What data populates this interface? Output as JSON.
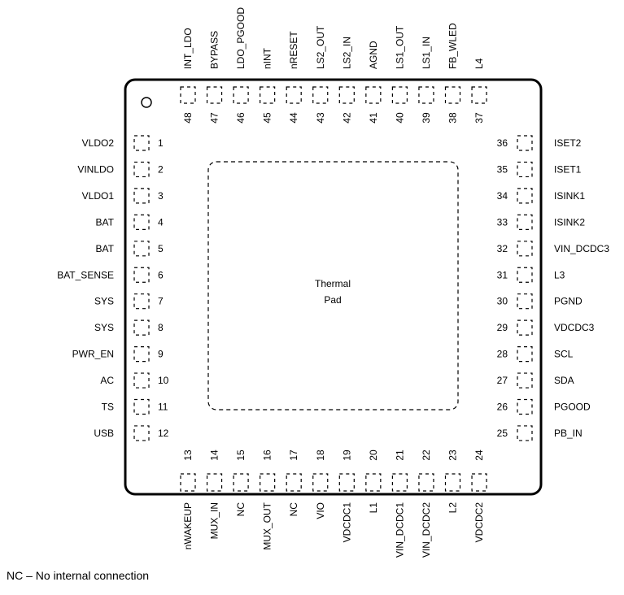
{
  "package": {
    "thermal_pad_lines": [
      "Thermal",
      "Pad"
    ]
  },
  "pins": {
    "left": [
      {
        "num": "1",
        "name": "VLDO2"
      },
      {
        "num": "2",
        "name": "VINLDO"
      },
      {
        "num": "3",
        "name": "VLDO1"
      },
      {
        "num": "4",
        "name": "BAT"
      },
      {
        "num": "5",
        "name": "BAT"
      },
      {
        "num": "6",
        "name": "BAT_SENSE"
      },
      {
        "num": "7",
        "name": "SYS"
      },
      {
        "num": "8",
        "name": "SYS"
      },
      {
        "num": "9",
        "name": "PWR_EN"
      },
      {
        "num": "10",
        "name": "AC"
      },
      {
        "num": "11",
        "name": "TS"
      },
      {
        "num": "12",
        "name": "USB"
      }
    ],
    "bottom": [
      {
        "num": "13",
        "name": "nWAKEUP"
      },
      {
        "num": "14",
        "name": "MUX_IN"
      },
      {
        "num": "15",
        "name": "NC"
      },
      {
        "num": "16",
        "name": "MUX_OUT"
      },
      {
        "num": "17",
        "name": "NC"
      },
      {
        "num": "18",
        "name": "VIO"
      },
      {
        "num": "19",
        "name": "VDCDC1"
      },
      {
        "num": "20",
        "name": "L1"
      },
      {
        "num": "21",
        "name": "VIN_DCDC1"
      },
      {
        "num": "22",
        "name": "VIN_DCDC2"
      },
      {
        "num": "23",
        "name": "L2"
      },
      {
        "num": "24",
        "name": "VDCDC2"
      }
    ],
    "right": [
      {
        "num": "25",
        "name": "PB_IN"
      },
      {
        "num": "26",
        "name": "PGOOD"
      },
      {
        "num": "27",
        "name": "SDA"
      },
      {
        "num": "28",
        "name": "SCL"
      },
      {
        "num": "29",
        "name": "VDCDC3"
      },
      {
        "num": "30",
        "name": "PGND"
      },
      {
        "num": "31",
        "name": "L3"
      },
      {
        "num": "32",
        "name": "VIN_DCDC3"
      },
      {
        "num": "33",
        "name": "ISINK2"
      },
      {
        "num": "34",
        "name": "ISINK1"
      },
      {
        "num": "35",
        "name": "ISET1"
      },
      {
        "num": "36",
        "name": "ISET2"
      }
    ],
    "top": [
      {
        "num": "37",
        "name": "L4"
      },
      {
        "num": "38",
        "name": "FB_WLED"
      },
      {
        "num": "39",
        "name": "LS1_IN"
      },
      {
        "num": "40",
        "name": "LS1_OUT"
      },
      {
        "num": "41",
        "name": "AGND"
      },
      {
        "num": "42",
        "name": "LS2_IN"
      },
      {
        "num": "43",
        "name": "LS2_OUT"
      },
      {
        "num": "44",
        "name": "nRESET"
      },
      {
        "num": "45",
        "name": "nINT"
      },
      {
        "num": "46",
        "name": "LDO_PGOOD"
      },
      {
        "num": "47",
        "name": "BYPASS"
      },
      {
        "num": "48",
        "name": "INT_LDO"
      }
    ]
  },
  "footnote": "NC – No internal connection"
}
